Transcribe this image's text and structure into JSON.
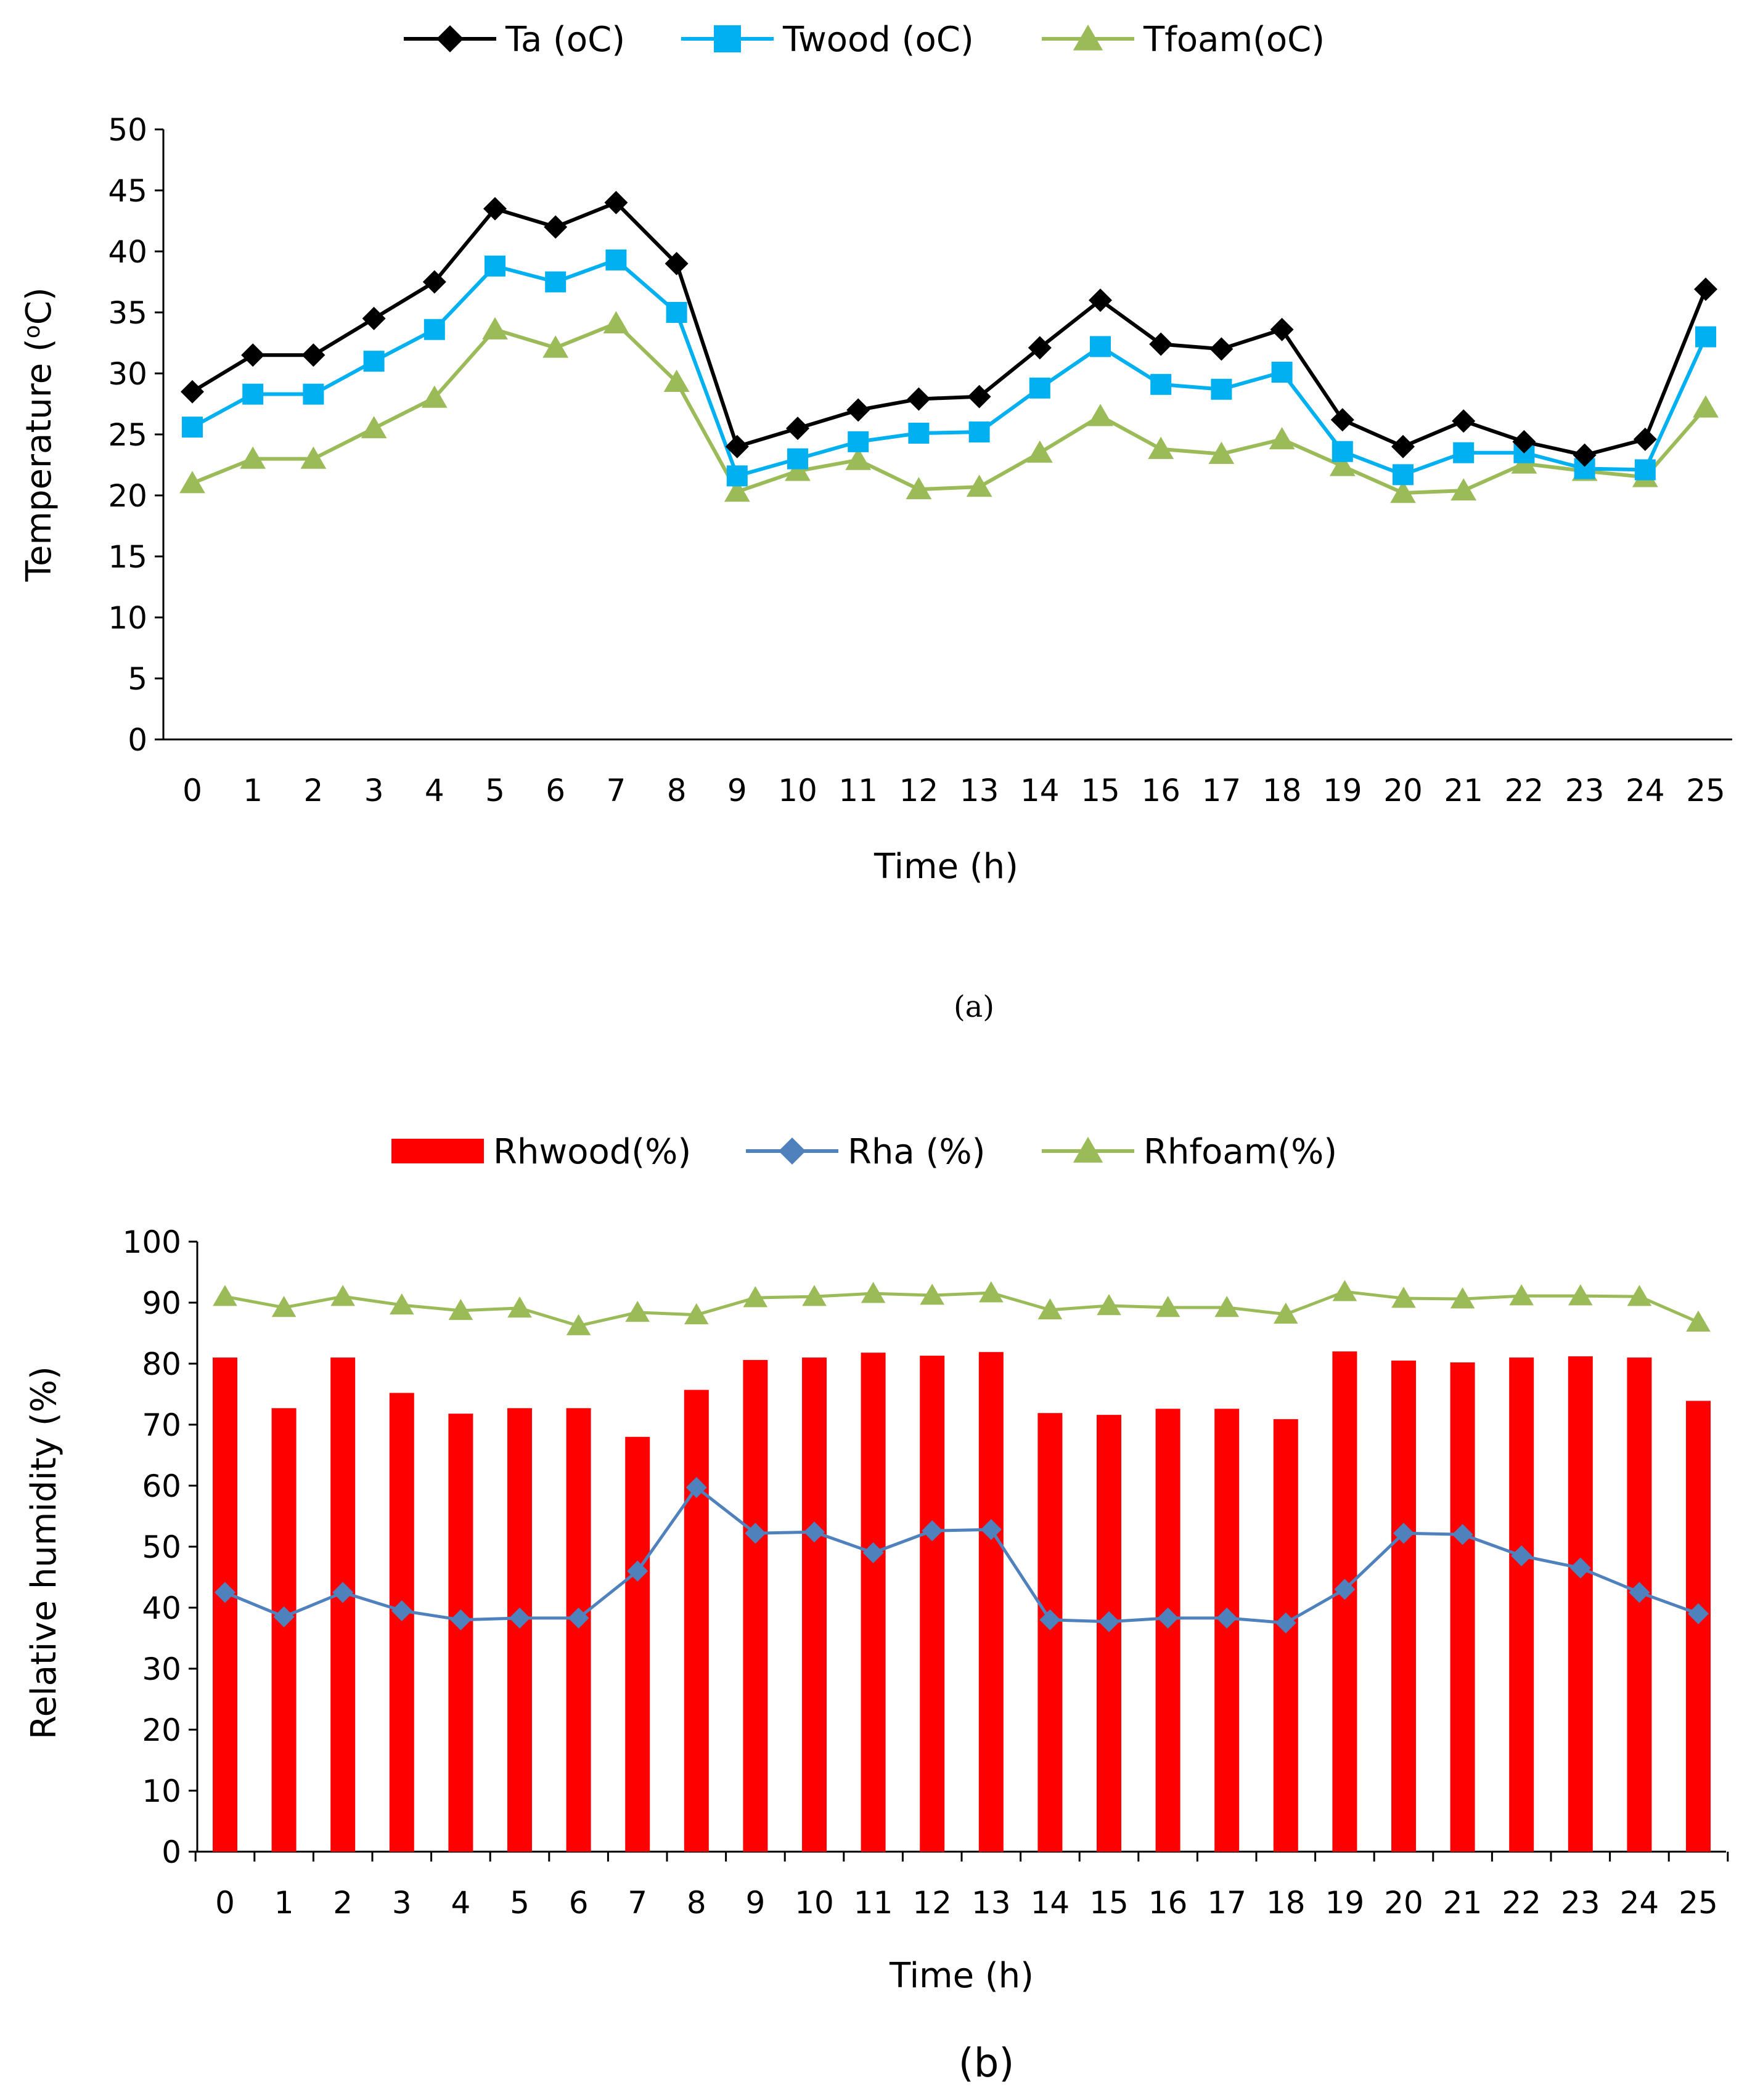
{
  "colors": {
    "ta": "#000000",
    "twood": "#00B0F0",
    "tfoam": "#9BBB59",
    "rhwood": "#FF0000",
    "rha": "#4F81BD",
    "rhfoam": "#9BBB59",
    "axis": "#000000"
  },
  "panel_labels": {
    "a": "(a)",
    "b": "(b)"
  },
  "chart_data": [
    {
      "type": "line",
      "id": "temperature",
      "title": "",
      "xlabel": "Time (h)",
      "ylabel": "Temperature (ºC)",
      "ylabel_main": "Temperature (",
      "ylabel_sup": "o",
      "ylabel_tail": "C)",
      "ylim": [
        0,
        50
      ],
      "yticks": [
        0,
        5,
        10,
        15,
        20,
        25,
        30,
        35,
        40,
        45,
        50
      ],
      "legend_position": "top-center",
      "categories": [
        "0",
        "1",
        "2",
        "3",
        "4",
        "5",
        "6",
        "7",
        "8",
        "9",
        "10",
        "11",
        "12",
        "13",
        "14",
        "15",
        "16",
        "17",
        "18",
        "19",
        "20",
        "21",
        "22",
        "23",
        "24",
        "25"
      ],
      "series": [
        {
          "name": "Ta (oC)",
          "marker": "diamond",
          "color_key": "ta",
          "values": [
            28.5,
            31.5,
            31.5,
            34.5,
            37.5,
            43.5,
            42.0,
            44.0,
            39.0,
            24.0,
            25.5,
            27.0,
            27.9,
            28.1,
            32.1,
            36.0,
            32.4,
            32.0,
            33.6,
            26.2,
            24.0,
            26.1,
            24.4,
            23.3,
            24.6,
            36.9
          ]
        },
        {
          "name": "Twood (oC)",
          "marker": "square",
          "color_key": "twood",
          "values": [
            25.6,
            28.3,
            28.3,
            31.0,
            33.6,
            38.8,
            37.5,
            39.3,
            35.0,
            21.6,
            23.0,
            24.4,
            25.1,
            25.2,
            28.8,
            32.2,
            29.1,
            28.7,
            30.1,
            23.6,
            21.7,
            23.5,
            23.5,
            22.2,
            22.1,
            33.0
          ]
        },
        {
          "name": "Tfoam(oC)",
          "marker": "triangle",
          "color_key": "tfoam",
          "values": [
            21.0,
            23.0,
            23.0,
            25.5,
            28.0,
            33.6,
            32.1,
            34.1,
            29.3,
            20.3,
            22.0,
            22.9,
            20.5,
            20.7,
            23.5,
            26.5,
            23.8,
            23.4,
            24.6,
            22.4,
            20.2,
            20.4,
            22.6,
            22.0,
            21.5,
            27.2
          ]
        }
      ]
    },
    {
      "type": "bar+line",
      "id": "humidity",
      "title": "",
      "xlabel": "Time (h)",
      "ylabel": "Relative humidity (%)",
      "ylim": [
        0,
        100
      ],
      "yticks": [
        0,
        10,
        20,
        30,
        40,
        50,
        60,
        70,
        80,
        90,
        100
      ],
      "legend_position": "top-center",
      "categories": [
        "0",
        "1",
        "2",
        "3",
        "4",
        "5",
        "6",
        "7",
        "8",
        "9",
        "10",
        "11",
        "12",
        "13",
        "14",
        "15",
        "16",
        "17",
        "18",
        "19",
        "20",
        "21",
        "22",
        "23",
        "24",
        "25"
      ],
      "series": [
        {
          "name": "Rhwood(%)",
          "kind": "bar",
          "color_key": "rhwood",
          "values": [
            81,
            72.7,
            81,
            75.2,
            71.8,
            72.7,
            72.7,
            68,
            75.7,
            80.6,
            81,
            81.8,
            81.3,
            81.9,
            71.9,
            71.6,
            72.6,
            72.6,
            70.9,
            82,
            80.5,
            80.2,
            81,
            81.2,
            81,
            73.9
          ]
        },
        {
          "name": "Rha (%)",
          "kind": "line",
          "marker": "diamond",
          "color_key": "rha",
          "values": [
            42.5,
            38.5,
            42.5,
            39.5,
            38.0,
            38.3,
            38.3,
            46.0,
            59.7,
            52.2,
            52.4,
            49.0,
            52.6,
            52.8,
            38.0,
            37.7,
            38.3,
            38.3,
            37.5,
            43.0,
            52.2,
            52.0,
            48.5,
            46.5,
            42.5,
            39.0
          ]
        },
        {
          "name": "Rhfoam(%)",
          "kind": "line",
          "marker": "triangle",
          "color_key": "rhfoam",
          "values": [
            91.0,
            89.2,
            91.0,
            89.6,
            88.7,
            89.1,
            86.2,
            88.4,
            88.0,
            90.8,
            91.0,
            91.5,
            91.2,
            91.6,
            88.8,
            89.5,
            89.2,
            89.2,
            88.1,
            91.8,
            90.7,
            90.6,
            91.1,
            91.1,
            91.0,
            86.8
          ]
        }
      ]
    }
  ]
}
